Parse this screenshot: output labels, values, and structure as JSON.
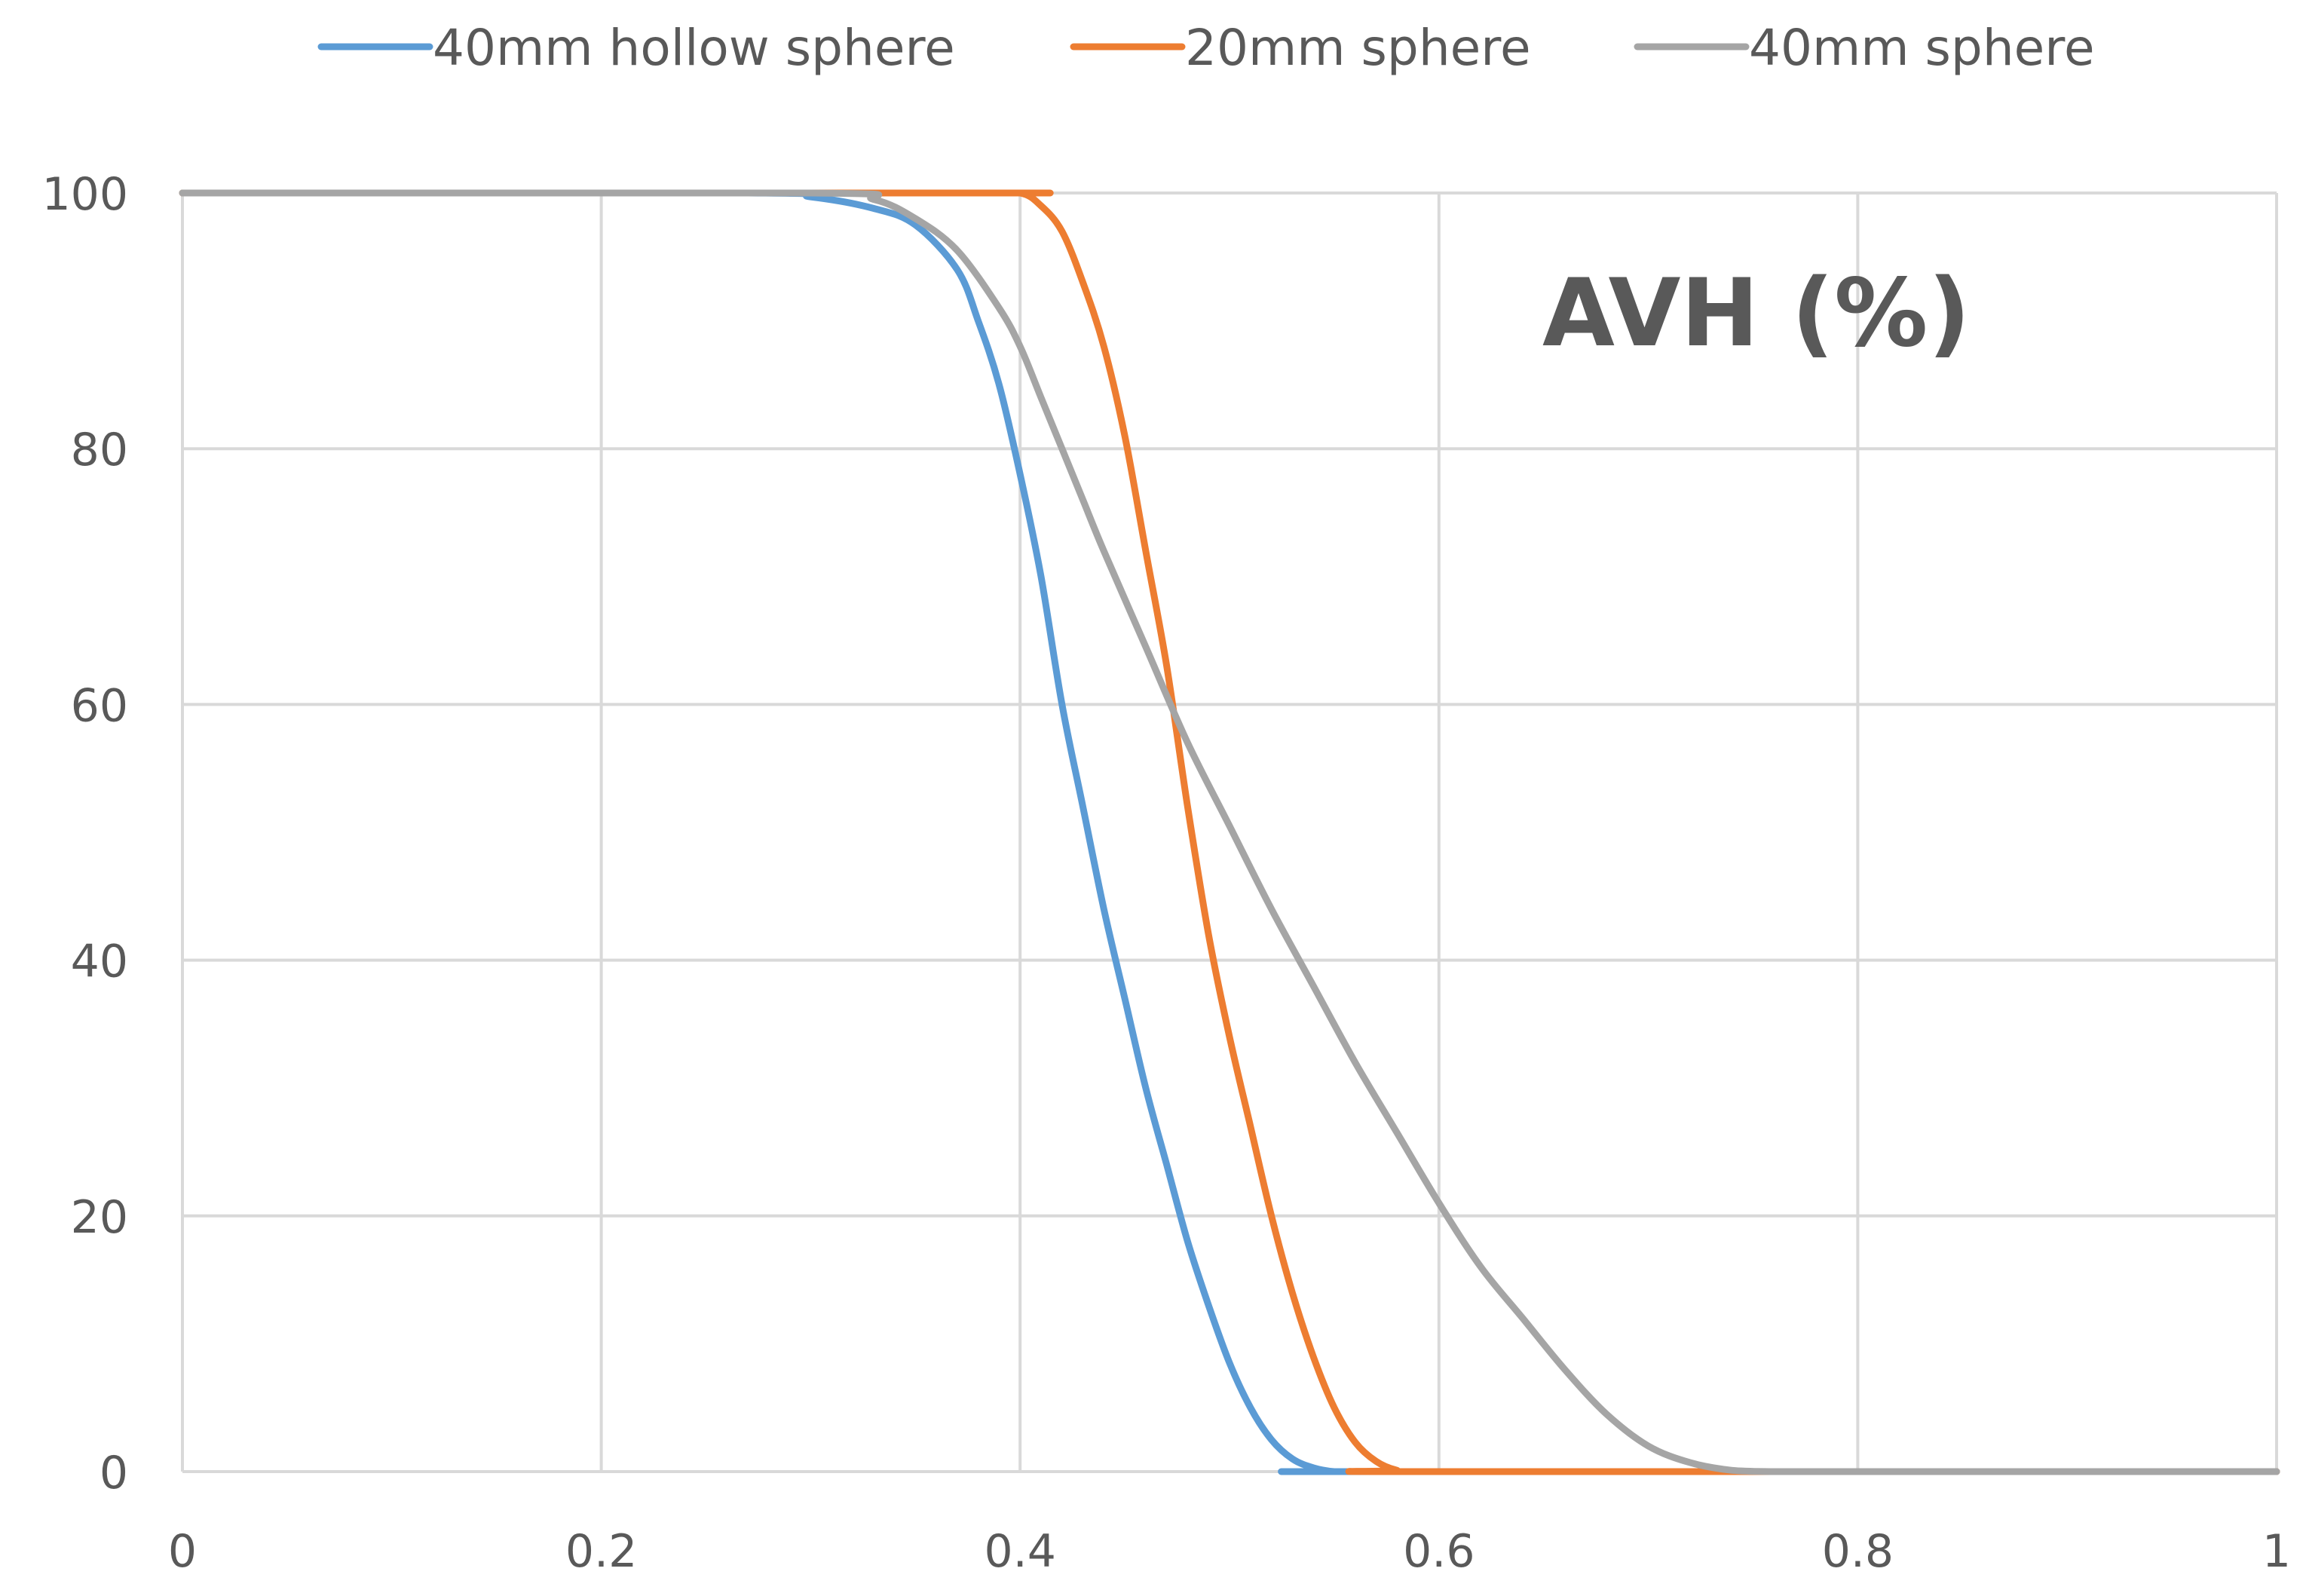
{
  "chart_data": {
    "type": "line",
    "title": "AVH (%)",
    "xlabel": "",
    "ylabel": "",
    "xlim": [
      0,
      1
    ],
    "ylim": [
      0,
      100
    ],
    "grid": true,
    "legend_position": "top",
    "x_ticks": [
      "0",
      "0.2",
      "0.4",
      "0.6",
      "0.8",
      "1"
    ],
    "y_ticks": [
      "0",
      "20",
      "40",
      "60",
      "80",
      "100"
    ],
    "series": [
      {
        "name": "40mm hollow sphere",
        "color": "#5B9BD5",
        "x": [
          0,
          0.27,
          0.3,
          0.33,
          0.35,
          0.37,
          0.38,
          0.39,
          0.4,
          0.41,
          0.42,
          0.43,
          0.44,
          0.45,
          0.46,
          0.47,
          0.48,
          0.49,
          0.5,
          0.51,
          0.52,
          0.53,
          0.54,
          0.55,
          0.56,
          1.0
        ],
        "y": [
          100,
          100,
          99.7,
          98.8,
          97.5,
          94,
          90,
          85,
          78,
          70,
          60,
          52,
          44,
          37,
          30,
          24,
          18,
          13,
          8.5,
          5.0,
          2.5,
          1.0,
          0.3,
          0,
          0,
          0
        ]
      },
      {
        "name": "20mm sphere",
        "color": "#ED7D31",
        "x": [
          0,
          0.38,
          0.4,
          0.41,
          0.42,
          0.43,
          0.44,
          0.45,
          0.46,
          0.47,
          0.48,
          0.49,
          0.5,
          0.51,
          0.52,
          0.53,
          0.54,
          0.55,
          0.56,
          0.57,
          0.58,
          0.59,
          1.0
        ],
        "y": [
          100,
          100,
          100,
          99,
          97,
          93,
          88,
          81,
          72,
          63,
          52,
          42,
          34,
          27,
          20,
          14,
          9,
          5,
          2.3,
          0.8,
          0.1,
          0,
          0
        ]
      },
      {
        "name": "40mm sphere",
        "color": "#A5A5A5",
        "x": [
          0,
          0.3,
          0.33,
          0.35,
          0.37,
          0.39,
          0.4,
          0.41,
          0.42,
          0.43,
          0.44,
          0.46,
          0.48,
          0.5,
          0.52,
          0.54,
          0.56,
          0.58,
          0.6,
          0.62,
          0.64,
          0.66,
          0.68,
          0.7,
          0.72,
          0.74,
          0.76,
          0.77,
          0.78,
          1.0
        ],
        "y": [
          100,
          100,
          99.5,
          98,
          95.5,
          91,
          88,
          84,
          80,
          76,
          72,
          64.5,
          57,
          50.5,
          44,
          38,
          32,
          26.5,
          21,
          16,
          12,
          8,
          4.5,
          2,
          0.7,
          0.1,
          0,
          0,
          0,
          0
        ]
      }
    ]
  }
}
